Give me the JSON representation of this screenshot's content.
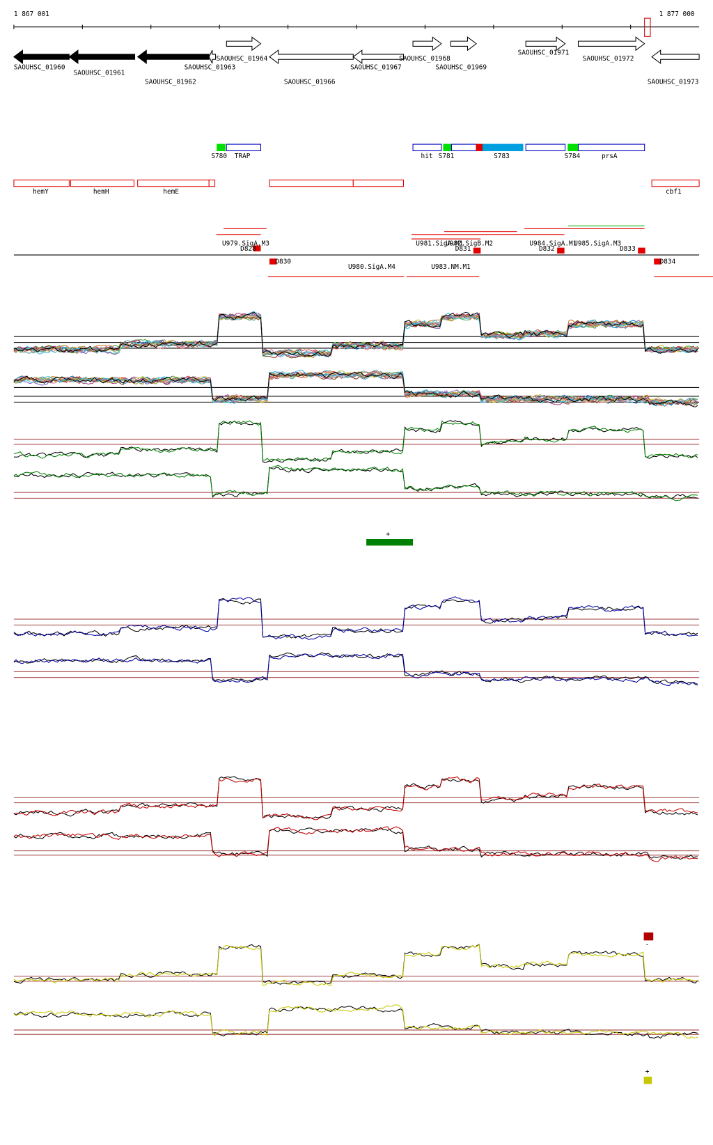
{
  "ruler": {
    "start": "1 867 001",
    "end": "1 877 000"
  },
  "genes": [
    {
      "label": "SAOUHSC_01960"
    },
    {
      "label": "SAOUHSC_01961"
    },
    {
      "label": "SAOUHSC_01962"
    },
    {
      "label": "SAOUHSC_01963"
    },
    {
      "label": "SAOUHSC_01964"
    },
    {
      "label": "SAOUHSC_01966"
    },
    {
      "label": "SAOUHSC_01967"
    },
    {
      "label": "SAOUHSC_01968"
    },
    {
      "label": "SAOUHSC_01969"
    },
    {
      "label": "SAOUHSC_01971"
    },
    {
      "label": "SAOUHSC_01972"
    },
    {
      "label": "SAOUHSC_01973"
    }
  ],
  "features": [
    {
      "label": "S780"
    },
    {
      "label": "TRAP"
    },
    {
      "label": "hit"
    },
    {
      "label": "S781"
    },
    {
      "label": "S783"
    },
    {
      "label": "S784"
    },
    {
      "label": "prsA"
    }
  ],
  "gene_names": [
    {
      "label": "hemY"
    },
    {
      "label": "hemH"
    },
    {
      "label": "hemE"
    },
    {
      "label": "cbf1"
    }
  ],
  "annotations": [
    {
      "label": "U979.SigA.M3"
    },
    {
      "label": "D828"
    },
    {
      "label": "D830"
    },
    {
      "label": "U980.SigA.M4"
    },
    {
      "label": "U981.SigA.M1"
    },
    {
      "label": "U982.SigB.M2"
    },
    {
      "label": "D831"
    },
    {
      "label": "U983.NM.M1"
    },
    {
      "label": "U984.SigA.M1"
    },
    {
      "label": "D832"
    },
    {
      "label": "U985.SigA.M3"
    },
    {
      "label": "D833"
    },
    {
      "label": "D834"
    }
  ],
  "strand_legend": {
    "green": "+",
    "red": "-",
    "yellow": "+"
  }
}
